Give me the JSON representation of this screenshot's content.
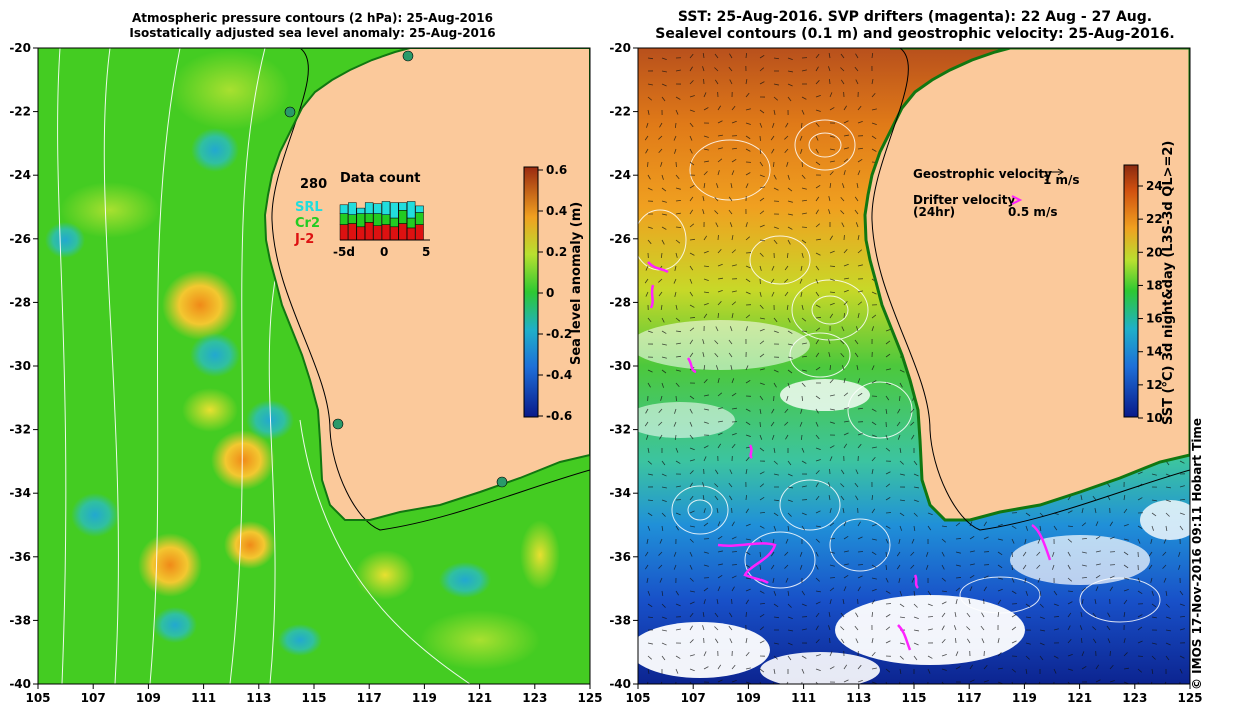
{
  "left_panel": {
    "title_line1": "Atmospheric pressure contours (2 hPa): 25-Aug-2016",
    "title_line2": "Isostatically adjusted sea level anomaly: 25-Aug-2016",
    "x_ticks": [
      "105",
      "107",
      "109",
      "111",
      "113",
      "115",
      "117",
      "119",
      "121",
      "123",
      "125"
    ],
    "y_ticks": [
      "-20",
      "-22",
      "-24",
      "-26",
      "-28",
      "-30",
      "-32",
      "-34",
      "-36",
      "-38",
      "-40"
    ],
    "colorbar_label": "Sea level anomaly (m)",
    "colorbar_ticks": [
      "0.6",
      "0.4",
      "0.2",
      "0",
      "-0.2",
      "-0.4",
      "-0.6"
    ],
    "inset": {
      "title": "Data count",
      "max_label": "280",
      "legend": [
        {
          "label": "SRL",
          "color": "#22dddd"
        },
        {
          "label": "Cr2",
          "color": "#22cc22"
        },
        {
          "label": "J-2",
          "color": "#dd1111"
        }
      ],
      "x_ticks": [
        "-5d",
        "0",
        "5"
      ],
      "bars_srl": [
        40,
        55,
        25,
        50,
        45,
        60,
        70,
        35,
        75,
        30
      ],
      "bars_cr2": [
        50,
        40,
        60,
        40,
        55,
        45,
        40,
        60,
        45,
        55
      ],
      "bars_j2": [
        70,
        75,
        60,
        80,
        65,
        70,
        60,
        75,
        55,
        70
      ]
    }
  },
  "right_panel": {
    "title_line1": "SST: 25-Aug-2016. SVP drifters (magenta): 22 Aug - 27 Aug.",
    "title_line2": "Sealevel contours (0.1 m) and geostrophic velocity: 25-Aug-2016.",
    "x_ticks": [
      "105",
      "107",
      "109",
      "111",
      "113",
      "115",
      "117",
      "119",
      "121",
      "123",
      "125"
    ],
    "y_ticks": [
      "-20",
      "-22",
      "-24",
      "-26",
      "-28",
      "-30",
      "-32",
      "-34",
      "-36",
      "-38",
      "-40"
    ],
    "colorbar_label": "SST (°C) 3d night&day (L3S-3d QL>=2)",
    "colorbar_ticks": [
      "24",
      "22",
      "20",
      "18",
      "16",
      "14",
      "12",
      "10"
    ],
    "legend_geo": "Geostrophic velocity",
    "legend_geo_scale": "1 m/s",
    "legend_drifter": "Drifter velocity",
    "legend_drifter_sub": "(24hr)",
    "legend_drifter_scale": "0.5 m/s"
  },
  "credit": "© IMOS 17-Nov-2016 09:11 Hobart Time",
  "colors": {
    "land": "#fbc99b",
    "ocean_green": "#44cc22",
    "drifter": "#ff22ff"
  }
}
